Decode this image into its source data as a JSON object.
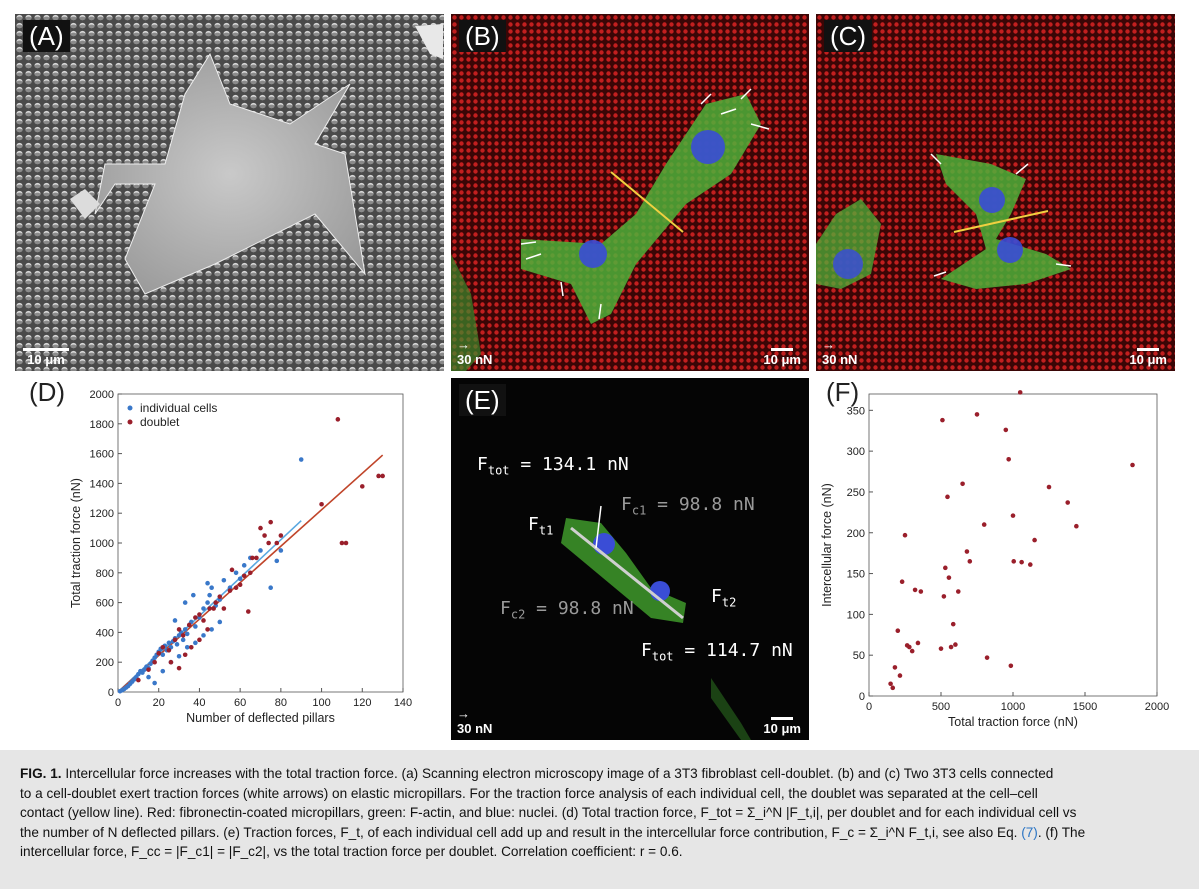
{
  "panels": {
    "a": {
      "label": "(A)",
      "scalebar": "10 μm"
    },
    "b": {
      "label": "(B)",
      "force_scale": "30 nN",
      "scalebar": "10 μm"
    },
    "c": {
      "label": "(C)",
      "force_scale": "30 nN",
      "scalebar": "10 μm"
    },
    "d": {
      "label": "(D)"
    },
    "e": {
      "label": "(E)",
      "force_scale": "30 nN",
      "scalebar": "10 μm",
      "annotations": {
        "ftot1_value": "= 134.1 nN",
        "fc1_value": "= 98.8 nN",
        "fc2_value": "= 98.8 nN",
        "ftot2_value": "= 114.7 nN",
        "f_symbol": "F",
        "tot_sub": "tot",
        "t1_sub": "t1",
        "c1_sub": "c1",
        "c2_sub": "c2",
        "t2_sub": "t2"
      }
    },
    "f": {
      "label": "(F)"
    }
  },
  "chart_data": [
    {
      "type": "scatter",
      "xlabel": "Number of deflected pillars",
      "ylabel": "Total traction force (nN)",
      "xlim": [
        0,
        140
      ],
      "ylim": [
        0,
        2000
      ],
      "xticks": [
        0,
        20,
        40,
        60,
        80,
        100,
        120,
        140
      ],
      "yticks": [
        0,
        200,
        400,
        600,
        800,
        1000,
        1200,
        1400,
        1600,
        1800,
        2000
      ],
      "legend_position": "top-left",
      "series": [
        {
          "name": "individual cells",
          "color": "#3a78c9",
          "points": [
            [
              1,
              5
            ],
            [
              2,
              12
            ],
            [
              3,
              20
            ],
            [
              4,
              30
            ],
            [
              5,
              40
            ],
            [
              6,
              55
            ],
            [
              7,
              70
            ],
            [
              8,
              85
            ],
            [
              9,
              100
            ],
            [
              10,
              120
            ],
            [
              11,
              140
            ],
            [
              12,
              130
            ],
            [
              13,
              150
            ],
            [
              14,
              170
            ],
            [
              15,
              160
            ],
            [
              16,
              190
            ],
            [
              17,
              210
            ],
            [
              18,
              230
            ],
            [
              19,
              250
            ],
            [
              20,
              270
            ],
            [
              21,
              290
            ],
            [
              22,
              250
            ],
            [
              23,
              310
            ],
            [
              24,
              280
            ],
            [
              25,
              330
            ],
            [
              26,
              300
            ],
            [
              27,
              340
            ],
            [
              28,
              360
            ],
            [
              29,
              320
            ],
            [
              30,
              380
            ],
            [
              31,
              400
            ],
            [
              32,
              350
            ],
            [
              33,
              420
            ],
            [
              34,
              390
            ],
            [
              35,
              450
            ],
            [
              36,
              470
            ],
            [
              38,
              440
            ],
            [
              40,
              500
            ],
            [
              42,
              560
            ],
            [
              44,
              600
            ],
            [
              45,
              650
            ],
            [
              46,
              700
            ],
            [
              48,
              580
            ],
            [
              50,
              620
            ],
            [
              52,
              750
            ],
            [
              55,
              700
            ],
            [
              58,
              800
            ],
            [
              60,
              760
            ],
            [
              62,
              850
            ],
            [
              65,
              900
            ],
            [
              70,
              950
            ],
            [
              75,
              700
            ],
            [
              78,
              880
            ],
            [
              80,
              950
            ],
            [
              90,
              1560
            ],
            [
              15,
              100
            ],
            [
              18,
              60
            ],
            [
              22,
              140
            ],
            [
              26,
              200
            ],
            [
              30,
              240
            ],
            [
              34,
              300
            ],
            [
              38,
              330
            ],
            [
              42,
              380
            ],
            [
              46,
              420
            ],
            [
              50,
              470
            ],
            [
              28,
              480
            ],
            [
              33,
              600
            ],
            [
              37,
              650
            ],
            [
              44,
              730
            ]
          ]
        },
        {
          "name": "doublet",
          "color": "#9a1f2b",
          "points": [
            [
              10,
              80
            ],
            [
              15,
              150
            ],
            [
              18,
              200
            ],
            [
              20,
              260
            ],
            [
              22,
              300
            ],
            [
              25,
              280
            ],
            [
              28,
              350
            ],
            [
              30,
              420
            ],
            [
              32,
              380
            ],
            [
              35,
              450
            ],
            [
              38,
              500
            ],
            [
              40,
              520
            ],
            [
              42,
              480
            ],
            [
              45,
              560
            ],
            [
              48,
              600
            ],
            [
              50,
              640
            ],
            [
              55,
              680
            ],
            [
              58,
              700
            ],
            [
              60,
              720
            ],
            [
              62,
              780
            ],
            [
              65,
              800
            ],
            [
              68,
              900
            ],
            [
              70,
              1100
            ],
            [
              72,
              1050
            ],
            [
              75,
              1140
            ],
            [
              78,
              1000
            ],
            [
              80,
              1050
            ],
            [
              100,
              1260
            ],
            [
              108,
              1830
            ],
            [
              110,
              1000
            ],
            [
              112,
              1000
            ],
            [
              120,
              1380
            ],
            [
              128,
              1450
            ],
            [
              130,
              1450
            ],
            [
              26,
              200
            ],
            [
              30,
              160
            ],
            [
              33,
              250
            ],
            [
              36,
              300
            ],
            [
              40,
              350
            ],
            [
              44,
              420
            ],
            [
              47,
              560
            ],
            [
              52,
              560
            ],
            [
              56,
              820
            ],
            [
              64,
              540
            ],
            [
              66,
              900
            ],
            [
              74,
              1000
            ]
          ]
        }
      ],
      "fit_lines": [
        {
          "series": "individual cells",
          "color": "#5aa8e0",
          "x": [
            0,
            90
          ],
          "y": [
            0,
            1150
          ]
        },
        {
          "series": "doublet",
          "color": "#c0452a",
          "x": [
            0,
            130
          ],
          "y": [
            0,
            1590
          ]
        }
      ]
    },
    {
      "type": "scatter",
      "xlabel": "Total traction force (nN)",
      "ylabel": "Intercellular force (nN)",
      "xlim": [
        0,
        2000
      ],
      "ylim": [
        0,
        370
      ],
      "xticks": [
        0,
        500,
        1000,
        1500,
        2000
      ],
      "yticks": [
        0,
        50,
        100,
        150,
        200,
        250,
        300,
        350
      ],
      "series": [
        {
          "name": "",
          "color": "#9a1f2b",
          "points": [
            [
              150,
              15
            ],
            [
              165,
              10
            ],
            [
              180,
              35
            ],
            [
              200,
              80
            ],
            [
              215,
              25
            ],
            [
              230,
              140
            ],
            [
              250,
              197
            ],
            [
              265,
              62
            ],
            [
              280,
              60
            ],
            [
              300,
              55
            ],
            [
              320,
              130
            ],
            [
              340,
              65
            ],
            [
              360,
              128
            ],
            [
              500,
              58
            ],
            [
              510,
              338
            ],
            [
              520,
              122
            ],
            [
              530,
              157
            ],
            [
              545,
              244
            ],
            [
              555,
              145
            ],
            [
              570,
              60
            ],
            [
              585,
              88
            ],
            [
              600,
              63
            ],
            [
              620,
              128
            ],
            [
              650,
              260
            ],
            [
              680,
              177
            ],
            [
              700,
              165
            ],
            [
              750,
              345
            ],
            [
              800,
              210
            ],
            [
              820,
              47
            ],
            [
              950,
              326
            ],
            [
              970,
              290
            ],
            [
              985,
              37
            ],
            [
              1000,
              221
            ],
            [
              1005,
              165
            ],
            [
              1050,
              372
            ],
            [
              1060,
              164
            ],
            [
              1120,
              161
            ],
            [
              1150,
              191
            ],
            [
              1250,
              256
            ],
            [
              1380,
              237
            ],
            [
              1440,
              208
            ],
            [
              1830,
              283
            ]
          ]
        }
      ]
    }
  ],
  "caption": {
    "fig_label": "FIG. 1.",
    "line1": "Intercellular force increases with the total traction force. (a) Scanning electron microscopy image of a 3T3 fibroblast cell-doublet. (b) and (c) Two 3T3 cells connected",
    "line2": "to a cell-doublet exert traction forces (white arrows) on elastic micropillars. For the traction force analysis of each individual cell, the doublet was separated at the cell–cell",
    "line3": "contact (yellow line). Red: fibronectin-coated micropillars, green: F-actin, and blue: nuclei. (d) Total traction force,",
    "line3_eq": "F_tot = Σ_i^N |F_t,i|, per doublet and for each individual cell vs",
    "line4": "the number of N deflected pillars. (e) Traction forces, F_t, of each individual cell add up and result in the intercellular force contribution, F_c = Σ_i^N F_t,i, see also Eq.",
    "line4_ref": "(7)",
    "line4_end": ". (f) The",
    "line5": "intercellular force, F_cc = |F_c1| = |F_c2|, vs the total traction force per doublet. Correlation coefficient: r = 0.6."
  }
}
